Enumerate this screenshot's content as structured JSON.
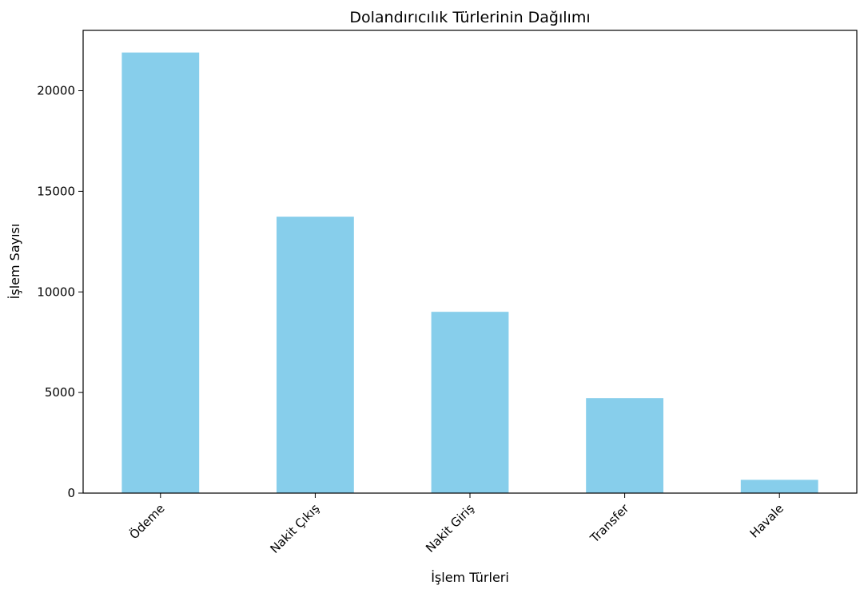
{
  "chart_data": {
    "type": "bar",
    "title": "Dolandırıcılık Türlerinin Dağılımı",
    "xlabel": "İşlem Türleri",
    "ylabel": "İşlem Sayısı",
    "categories": [
      "Ödeme",
      "Nakit Çıkış",
      "Nakit Giriş",
      "Transfer",
      "Havale"
    ],
    "values": [
      21900,
      13740,
      9010,
      4720,
      660
    ],
    "ylim": [
      0,
      23000
    ],
    "yticks": [
      0,
      5000,
      10000,
      15000,
      20000
    ],
    "bar_color": "#87ceeb",
    "grid": false,
    "legend": false,
    "xtick_rotation": 45
  }
}
